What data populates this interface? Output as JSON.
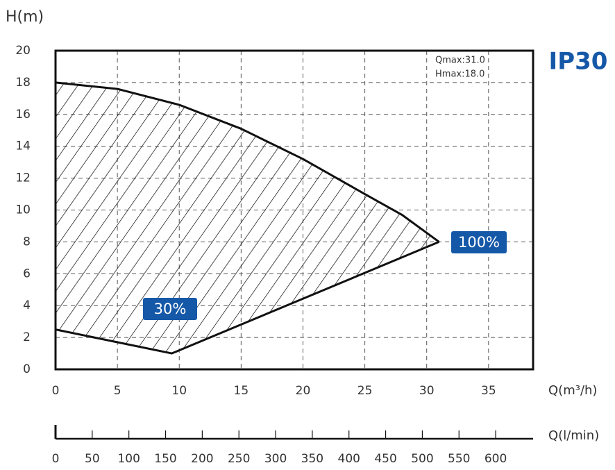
{
  "chart_data": {
    "type": "line",
    "title": "IP30",
    "ylabel": "H(m)",
    "xlabel": "Q(m³/h)",
    "x2label": "Q(l/min)",
    "annotations": [
      "Qmax:31.0",
      "Hmax:18.0"
    ],
    "xlim": [
      0,
      38.6
    ],
    "xticks": [
      0,
      5,
      10,
      15,
      20,
      25,
      30,
      35
    ],
    "ylim": [
      0,
      20
    ],
    "yticks": [
      0,
      2,
      4,
      6,
      8,
      10,
      12,
      14,
      16,
      18,
      20
    ],
    "x2lim": [
      0,
      651
    ],
    "x2ticks": [
      0,
      50,
      100,
      150,
      200,
      250,
      300,
      350,
      400,
      450,
      500,
      550,
      600
    ],
    "grid": true,
    "hatch": true,
    "series": [
      {
        "name": "100%",
        "color": "#111111",
        "label_color": "#1558a8",
        "x": [
          0,
          5,
          10,
          15,
          20,
          25,
          28,
          31
        ],
        "values": [
          18,
          17.6,
          16.6,
          15.1,
          13.2,
          11.0,
          9.7,
          8.0
        ]
      },
      {
        "name": "30%",
        "color": "#111111",
        "label_color": "#1558a8",
        "x": [
          0,
          9.4,
          31
        ],
        "values": [
          2.5,
          1.0,
          8.0
        ]
      }
    ]
  }
}
